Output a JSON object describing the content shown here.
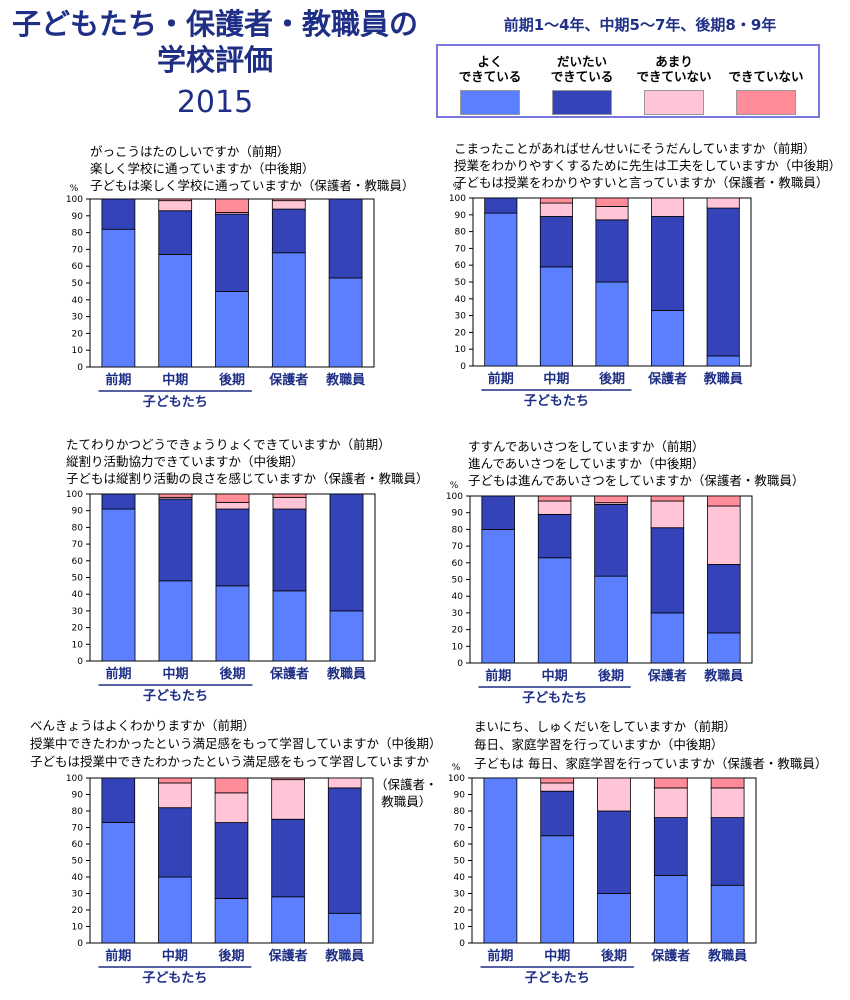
{
  "title": {
    "line1": "子どもたち・保護者・教職員の",
    "line2": "学校評価",
    "year": "2015"
  },
  "subtitle": "前期1～4年、中期5～7年、後期8・9年",
  "legend": [
    {
      "label": "よく\nできている",
      "color": "#5b7fff"
    },
    {
      "label": "だいたい\nできている",
      "color": "#3443b8"
    },
    {
      "label": "あまり\nできていない",
      "color": "#ffc4d6"
    },
    {
      "label": "できていない",
      "color": "#ff8c98"
    }
  ],
  "colors": {
    "yoku": "#5b7fff",
    "daitai": "#3443b8",
    "amari": "#ffc4d6",
    "dekite_inai": "#ff8c98",
    "label_blue": "#1f2f86"
  },
  "panels": [
    {
      "questions": [
        "がっこうはたのしいですか（前期）",
        "楽しく学校に通っていますか（中後期）",
        "子どもは楽しく学校に通っていますか（保護者・教職員）"
      ]
    },
    {
      "questions": [
        "こまったことがあればせんせいにそうだんしていますか（前期）",
        "授業をわかりやすくするために先生は工夫をしていますか（中後期）",
        "子どもは授業をわかりやすいと言っていますか（保護者・教職員）"
      ]
    },
    {
      "questions": [
        "たてわりかつどうできょうりょくできていますか（前期）",
        "縦割り活動協力できていますか（中後期）",
        "子どもは縦割り活動の良さを感じていますか（保護者・教職員）"
      ]
    },
    {
      "questions": [
        "すすんであいさつをしていますか（前期）",
        "進んであいさつをしていますか（中後期）",
        "子どもは進んであいさつをしていますか（保護者・教職員）"
      ]
    },
    {
      "questions": [
        "べんきょうはよくわかりますか（前期）",
        "授業中できたわかったという満足感をもって学習していますか（中後期）",
        "子どもは授業中できたわかったという満足感をもって学習していますか"
      ],
      "note": "（保護者・\n教職員）"
    },
    {
      "questions": [
        "まいにち、しゅくだいをしていますか（前期）",
        "毎日、家庭学習を行っていますか（中後期）",
        "子どもは 毎日、家庭学習を行っていますか（保護者・教職員）"
      ]
    }
  ],
  "chart_data": [
    {
      "type": "bar",
      "stacked": true,
      "categories": [
        "前期",
        "中期",
        "後期",
        "保護者",
        "教職員"
      ],
      "group_label": "子どもたち",
      "ylabel": "%",
      "ylim": [
        0,
        100
      ],
      "yticks": [
        0,
        10,
        20,
        30,
        40,
        50,
        60,
        70,
        80,
        90,
        100
      ],
      "series": [
        {
          "name": "よくできている",
          "values": [
            82,
            67,
            45,
            68,
            53
          ]
        },
        {
          "name": "だいたいできている",
          "values": [
            18,
            26,
            46,
            26,
            47
          ]
        },
        {
          "name": "あまりできていない",
          "values": [
            0,
            6,
            1,
            5,
            0
          ]
        },
        {
          "name": "できていない",
          "values": [
            0,
            1,
            8,
            1,
            0
          ]
        }
      ]
    },
    {
      "type": "bar",
      "stacked": true,
      "categories": [
        "前期",
        "中期",
        "後期",
        "保護者",
        "教職員"
      ],
      "group_label": "子どもたち",
      "ylabel": "%",
      "ylim": [
        0,
        100
      ],
      "yticks": [
        0,
        10,
        20,
        30,
        40,
        50,
        60,
        70,
        80,
        90,
        100
      ],
      "series": [
        {
          "name": "よくできている",
          "values": [
            91,
            59,
            50,
            33,
            6
          ]
        },
        {
          "name": "だいたいできている",
          "values": [
            9,
            30,
            37,
            56,
            88
          ]
        },
        {
          "name": "あまりできていない",
          "values": [
            0,
            8,
            8,
            11,
            6
          ]
        },
        {
          "name": "できていない",
          "values": [
            0,
            3,
            5,
            0,
            0
          ]
        }
      ]
    },
    {
      "type": "bar",
      "stacked": true,
      "categories": [
        "前期",
        "中期",
        "後期",
        "保護者",
        "教職員"
      ],
      "group_label": "子どもたち",
      "ylabel": "",
      "ylim": [
        0,
        100
      ],
      "yticks": [
        0,
        10,
        20,
        30,
        40,
        50,
        60,
        70,
        80,
        90,
        100
      ],
      "series": [
        {
          "name": "よくできている",
          "values": [
            91,
            48,
            45,
            42,
            30
          ]
        },
        {
          "name": "だいたいできている",
          "values": [
            9,
            49,
            46,
            49,
            70
          ]
        },
        {
          "name": "あまりできていない",
          "values": [
            0,
            1,
            4,
            7,
            0
          ]
        },
        {
          "name": "できていない",
          "values": [
            0,
            2,
            5,
            2,
            0
          ]
        }
      ]
    },
    {
      "type": "bar",
      "stacked": true,
      "categories": [
        "前期",
        "中期",
        "後期",
        "保護者",
        "教職員"
      ],
      "group_label": "子どもたち",
      "ylabel": "%",
      "ylim": [
        0,
        100
      ],
      "yticks": [
        0,
        10,
        20,
        30,
        40,
        50,
        60,
        70,
        80,
        90,
        100
      ],
      "series": [
        {
          "name": "よくできている",
          "values": [
            80,
            63,
            52,
            30,
            18
          ]
        },
        {
          "name": "だいたいできている",
          "values": [
            20,
            26,
            43,
            51,
            41
          ]
        },
        {
          "name": "あまりできていない",
          "values": [
            0,
            8,
            1,
            16,
            35
          ]
        },
        {
          "name": "できていない",
          "values": [
            0,
            3,
            4,
            3,
            6
          ]
        }
      ]
    },
    {
      "type": "bar",
      "stacked": true,
      "categories": [
        "前期",
        "中期",
        "後期",
        "保護者",
        "教職員"
      ],
      "group_label": "子どもたち",
      "ylabel": "",
      "ylim": [
        0,
        100
      ],
      "yticks": [
        0,
        10,
        20,
        30,
        40,
        50,
        60,
        70,
        80,
        90,
        100
      ],
      "series": [
        {
          "name": "よくできている",
          "values": [
            73,
            40,
            27,
            28,
            18
          ]
        },
        {
          "name": "だいたいできている",
          "values": [
            27,
            42,
            46,
            47,
            76
          ]
        },
        {
          "name": "あまりできていない",
          "values": [
            0,
            15,
            18,
            24,
            6
          ]
        },
        {
          "name": "できていない",
          "values": [
            0,
            3,
            9,
            1,
            0
          ]
        }
      ]
    },
    {
      "type": "bar",
      "stacked": true,
      "categories": [
        "前期",
        "中期",
        "後期",
        "保護者",
        "教職員"
      ],
      "group_label": "子どもたち",
      "ylabel": "%",
      "ylim": [
        0,
        100
      ],
      "yticks": [
        0,
        10,
        20,
        30,
        40,
        50,
        60,
        70,
        80,
        90,
        100
      ],
      "series": [
        {
          "name": "よくできている",
          "values": [
            100,
            65,
            30,
            41,
            35
          ]
        },
        {
          "name": "だいたいできている",
          "values": [
            0,
            27,
            50,
            35,
            41
          ]
        },
        {
          "name": "あまりできていない",
          "values": [
            0,
            5,
            20,
            18,
            18
          ]
        },
        {
          "name": "できていない",
          "values": [
            0,
            3,
            0,
            6,
            6
          ]
        }
      ]
    }
  ]
}
